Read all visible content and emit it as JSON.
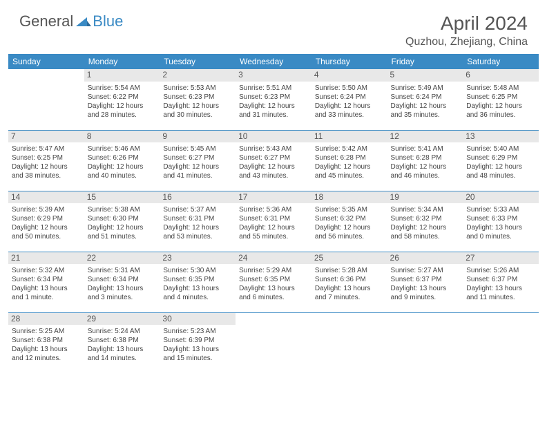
{
  "logo": {
    "general": "General",
    "blue": "Blue"
  },
  "header": {
    "month_title": "April 2024",
    "location": "Quzhou, Zhejiang, China"
  },
  "colors": {
    "brand_blue": "#3a8ac4",
    "header_gray": "#e8e8e8",
    "text": "#444444",
    "title_text": "#555555",
    "background": "#ffffff"
  },
  "typography": {
    "title_fontsize": 28,
    "location_fontsize": 16,
    "dayheader_fontsize": 12,
    "cell_fontsize": 10
  },
  "day_names": [
    "Sunday",
    "Monday",
    "Tuesday",
    "Wednesday",
    "Thursday",
    "Friday",
    "Saturday"
  ],
  "weeks": [
    [
      null,
      {
        "n": "1",
        "sr": "Sunrise: 5:54 AM",
        "ss": "Sunset: 6:22 PM",
        "dl": "Daylight: 12 hours and 28 minutes."
      },
      {
        "n": "2",
        "sr": "Sunrise: 5:53 AM",
        "ss": "Sunset: 6:23 PM",
        "dl": "Daylight: 12 hours and 30 minutes."
      },
      {
        "n": "3",
        "sr": "Sunrise: 5:51 AM",
        "ss": "Sunset: 6:23 PM",
        "dl": "Daylight: 12 hours and 31 minutes."
      },
      {
        "n": "4",
        "sr": "Sunrise: 5:50 AM",
        "ss": "Sunset: 6:24 PM",
        "dl": "Daylight: 12 hours and 33 minutes."
      },
      {
        "n": "5",
        "sr": "Sunrise: 5:49 AM",
        "ss": "Sunset: 6:24 PM",
        "dl": "Daylight: 12 hours and 35 minutes."
      },
      {
        "n": "6",
        "sr": "Sunrise: 5:48 AM",
        "ss": "Sunset: 6:25 PM",
        "dl": "Daylight: 12 hours and 36 minutes."
      }
    ],
    [
      {
        "n": "7",
        "sr": "Sunrise: 5:47 AM",
        "ss": "Sunset: 6:25 PM",
        "dl": "Daylight: 12 hours and 38 minutes."
      },
      {
        "n": "8",
        "sr": "Sunrise: 5:46 AM",
        "ss": "Sunset: 6:26 PM",
        "dl": "Daylight: 12 hours and 40 minutes."
      },
      {
        "n": "9",
        "sr": "Sunrise: 5:45 AM",
        "ss": "Sunset: 6:27 PM",
        "dl": "Daylight: 12 hours and 41 minutes."
      },
      {
        "n": "10",
        "sr": "Sunrise: 5:43 AM",
        "ss": "Sunset: 6:27 PM",
        "dl": "Daylight: 12 hours and 43 minutes."
      },
      {
        "n": "11",
        "sr": "Sunrise: 5:42 AM",
        "ss": "Sunset: 6:28 PM",
        "dl": "Daylight: 12 hours and 45 minutes."
      },
      {
        "n": "12",
        "sr": "Sunrise: 5:41 AM",
        "ss": "Sunset: 6:28 PM",
        "dl": "Daylight: 12 hours and 46 minutes."
      },
      {
        "n": "13",
        "sr": "Sunrise: 5:40 AM",
        "ss": "Sunset: 6:29 PM",
        "dl": "Daylight: 12 hours and 48 minutes."
      }
    ],
    [
      {
        "n": "14",
        "sr": "Sunrise: 5:39 AM",
        "ss": "Sunset: 6:29 PM",
        "dl": "Daylight: 12 hours and 50 minutes."
      },
      {
        "n": "15",
        "sr": "Sunrise: 5:38 AM",
        "ss": "Sunset: 6:30 PM",
        "dl": "Daylight: 12 hours and 51 minutes."
      },
      {
        "n": "16",
        "sr": "Sunrise: 5:37 AM",
        "ss": "Sunset: 6:31 PM",
        "dl": "Daylight: 12 hours and 53 minutes."
      },
      {
        "n": "17",
        "sr": "Sunrise: 5:36 AM",
        "ss": "Sunset: 6:31 PM",
        "dl": "Daylight: 12 hours and 55 minutes."
      },
      {
        "n": "18",
        "sr": "Sunrise: 5:35 AM",
        "ss": "Sunset: 6:32 PM",
        "dl": "Daylight: 12 hours and 56 minutes."
      },
      {
        "n": "19",
        "sr": "Sunrise: 5:34 AM",
        "ss": "Sunset: 6:32 PM",
        "dl": "Daylight: 12 hours and 58 minutes."
      },
      {
        "n": "20",
        "sr": "Sunrise: 5:33 AM",
        "ss": "Sunset: 6:33 PM",
        "dl": "Daylight: 13 hours and 0 minutes."
      }
    ],
    [
      {
        "n": "21",
        "sr": "Sunrise: 5:32 AM",
        "ss": "Sunset: 6:34 PM",
        "dl": "Daylight: 13 hours and 1 minute."
      },
      {
        "n": "22",
        "sr": "Sunrise: 5:31 AM",
        "ss": "Sunset: 6:34 PM",
        "dl": "Daylight: 13 hours and 3 minutes."
      },
      {
        "n": "23",
        "sr": "Sunrise: 5:30 AM",
        "ss": "Sunset: 6:35 PM",
        "dl": "Daylight: 13 hours and 4 minutes."
      },
      {
        "n": "24",
        "sr": "Sunrise: 5:29 AM",
        "ss": "Sunset: 6:35 PM",
        "dl": "Daylight: 13 hours and 6 minutes."
      },
      {
        "n": "25",
        "sr": "Sunrise: 5:28 AM",
        "ss": "Sunset: 6:36 PM",
        "dl": "Daylight: 13 hours and 7 minutes."
      },
      {
        "n": "26",
        "sr": "Sunrise: 5:27 AM",
        "ss": "Sunset: 6:37 PM",
        "dl": "Daylight: 13 hours and 9 minutes."
      },
      {
        "n": "27",
        "sr": "Sunrise: 5:26 AM",
        "ss": "Sunset: 6:37 PM",
        "dl": "Daylight: 13 hours and 11 minutes."
      }
    ],
    [
      {
        "n": "28",
        "sr": "Sunrise: 5:25 AM",
        "ss": "Sunset: 6:38 PM",
        "dl": "Daylight: 13 hours and 12 minutes."
      },
      {
        "n": "29",
        "sr": "Sunrise: 5:24 AM",
        "ss": "Sunset: 6:38 PM",
        "dl": "Daylight: 13 hours and 14 minutes."
      },
      {
        "n": "30",
        "sr": "Sunrise: 5:23 AM",
        "ss": "Sunset: 6:39 PM",
        "dl": "Daylight: 13 hours and 15 minutes."
      },
      null,
      null,
      null,
      null
    ]
  ]
}
